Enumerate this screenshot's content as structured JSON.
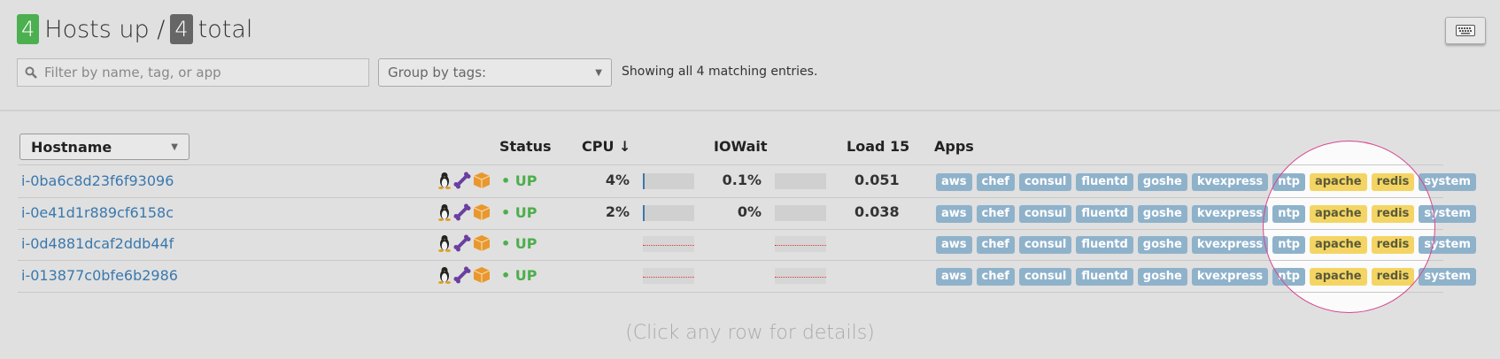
{
  "header": {
    "hosts_up_count": "4",
    "hosts_up_label": "Hosts up /",
    "total_count": "4",
    "total_label": "total"
  },
  "toolbar": {
    "filter_placeholder": "Filter by name, tag, or app",
    "group_by_label": "Group by tags:",
    "showing_text": "Showing all 4 matching entries.",
    "keyboard_icon": "keyboard-icon"
  },
  "table": {
    "columns": {
      "hostname": "Hostname",
      "status": "Status",
      "cpu": "CPU ↓",
      "iowait": "IOWait",
      "load15": "Load 15",
      "apps": "Apps"
    },
    "rows": [
      {
        "hostname": "i-0ba6c8d23f6f93096",
        "status": "• UP",
        "cpu": "4%",
        "cpu_pct": 4,
        "iowait": "0.1%",
        "iowait_pct": 0.1,
        "load15": "0.051"
      },
      {
        "hostname": "i-0e41d1r889cf6158c",
        "status": "• UP",
        "cpu": "2%",
        "cpu_pct": 2,
        "iowait": "0%",
        "iowait_pct": 0,
        "load15": "0.038"
      },
      {
        "hostname": "i-0d4881dcaf2ddb44f",
        "status": "• UP",
        "cpu": "",
        "cpu_pct": null,
        "iowait": "",
        "iowait_pct": null,
        "load15": ""
      },
      {
        "hostname": "i-013877c0bfe6b2986",
        "status": "• UP",
        "cpu": "",
        "cpu_pct": null,
        "iowait": "",
        "iowait_pct": null,
        "load15": ""
      }
    ],
    "host_icons": [
      "linux-penguin-icon",
      "bone-icon",
      "box-icon"
    ],
    "apps": [
      {
        "name": "aws",
        "color": "blue"
      },
      {
        "name": "chef",
        "color": "blue"
      },
      {
        "name": "consul",
        "color": "blue"
      },
      {
        "name": "fluentd",
        "color": "blue"
      },
      {
        "name": "goshe",
        "color": "blue"
      },
      {
        "name": "kvexpress",
        "color": "blue"
      },
      {
        "name": "ntp",
        "color": "blue"
      },
      {
        "name": "apache",
        "color": "yellow"
      },
      {
        "name": "redis",
        "color": "yellow"
      },
      {
        "name": "system",
        "color": "blue"
      }
    ]
  },
  "hint": "(Click any row for details)",
  "colors": {
    "up_badge": "#4caf50",
    "total_badge": "#666666",
    "status_up": "#4cae4c",
    "link": "#3a78ad",
    "tag_blue": "#8fb2cb",
    "tag_yellow": "#f4d564",
    "highlight_ring": "#d9458f"
  }
}
